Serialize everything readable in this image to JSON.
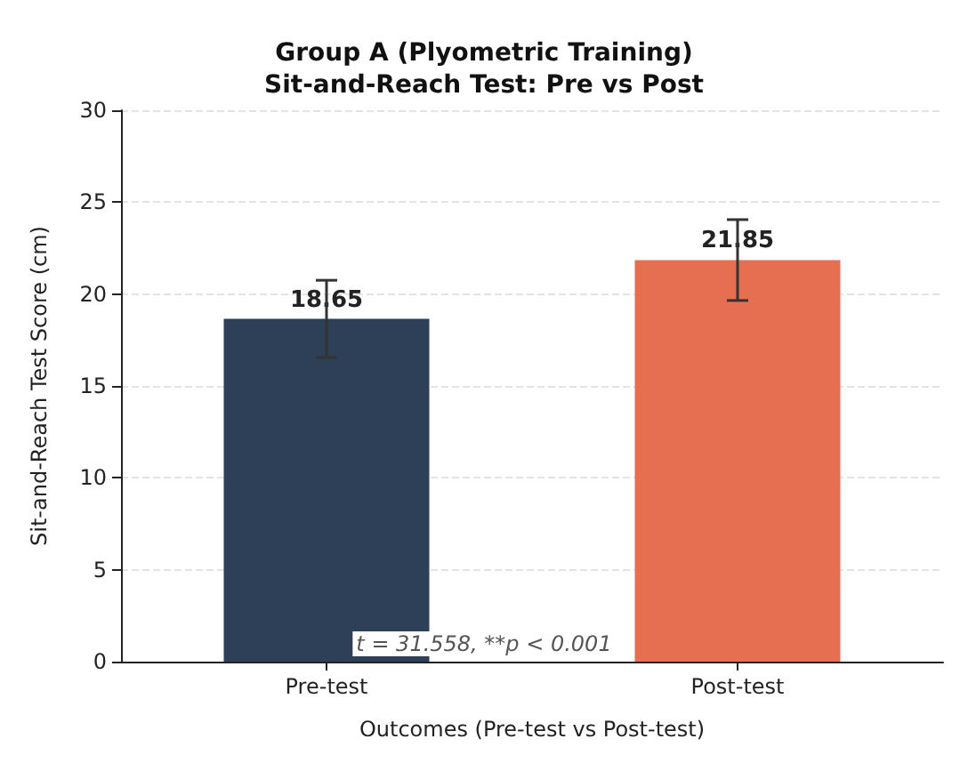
{
  "chart_data": {
    "type": "bar",
    "title": "Group A (Plyometric Training)\nSit-and-Reach Test: Pre vs Post",
    "xlabel": "Outcomes (Pre-test vs Post-test)",
    "ylabel": "Sit-and-Reach Test Score (cm)",
    "categories": [
      "Pre-test",
      "Post-test"
    ],
    "values": [
      18.65,
      21.85
    ],
    "colors": [
      "#2e3f58",
      "#e76f51"
    ],
    "errors": [
      2.1,
      2.2
    ],
    "ylim": [
      0,
      30
    ],
    "yticks": [
      0,
      5,
      10,
      15,
      20,
      25,
      30
    ],
    "grid": "y",
    "data_labels": true,
    "annotations": [
      "t = 31.558, **p < 0.001"
    ]
  }
}
